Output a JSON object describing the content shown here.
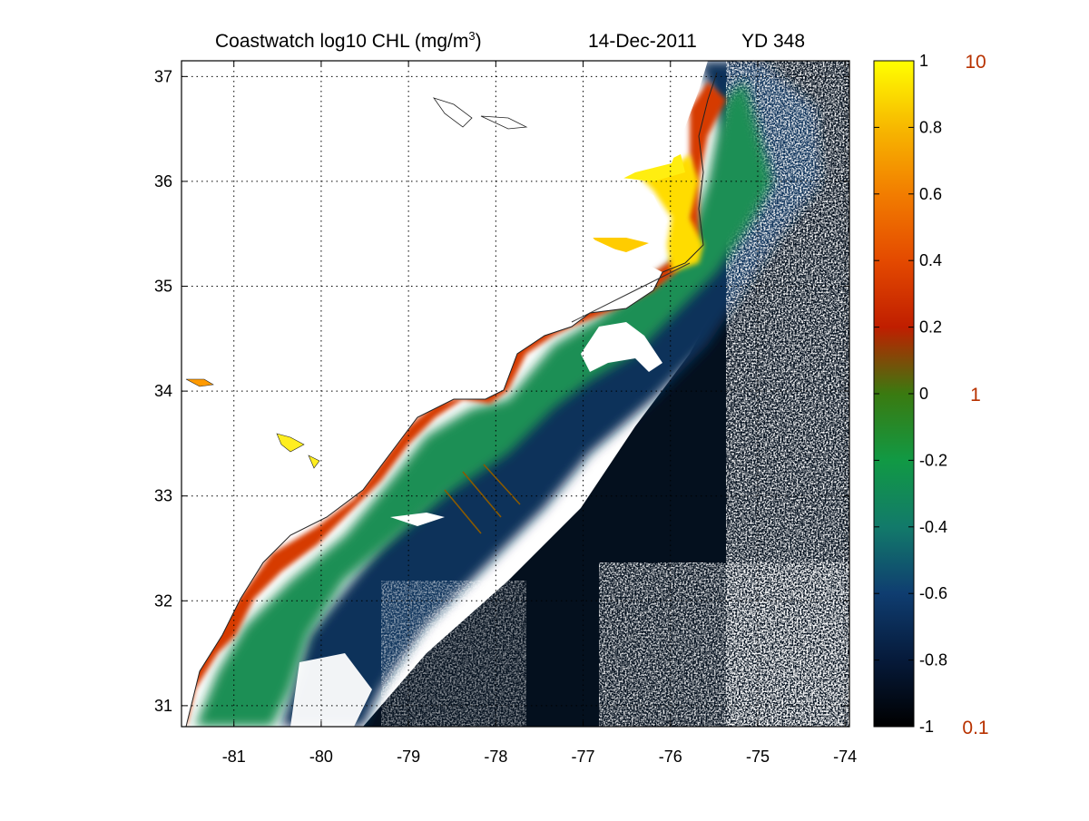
{
  "title": {
    "main": "Coastwatch  log10  CHL (mg/m",
    "superscript": "3",
    "close": ")",
    "date": "14-Dec-2011",
    "yearday": "YD 348"
  },
  "map": {
    "x_ticks": [
      "-81",
      "-80",
      "-79",
      "-78",
      "-77",
      "-76",
      "-75",
      "-74"
    ],
    "y_ticks": [
      "37",
      "36",
      "35",
      "34",
      "33",
      "32",
      "31"
    ],
    "xlim": [
      -81.6,
      -73.95
    ],
    "ylim": [
      30.8,
      37.15
    ]
  },
  "colorbar": {
    "ticks": [
      "1",
      "0.8",
      "0.6",
      "0.4",
      "0.2",
      "0",
      "-0.2",
      "-0.4",
      "-0.6",
      "-0.8",
      "-1"
    ],
    "right_labels": [
      "10",
      "1",
      "0.1"
    ],
    "right_label_color": "#b83200",
    "range": [
      -1,
      1
    ]
  },
  "colors": {
    "ocean_deep": "#05101e",
    "ocean_mid": "#0f2d55",
    "shelf_green": "#1a9a52",
    "coastal_red": "#d42a00",
    "sound_yellow": "#ffe600"
  }
}
